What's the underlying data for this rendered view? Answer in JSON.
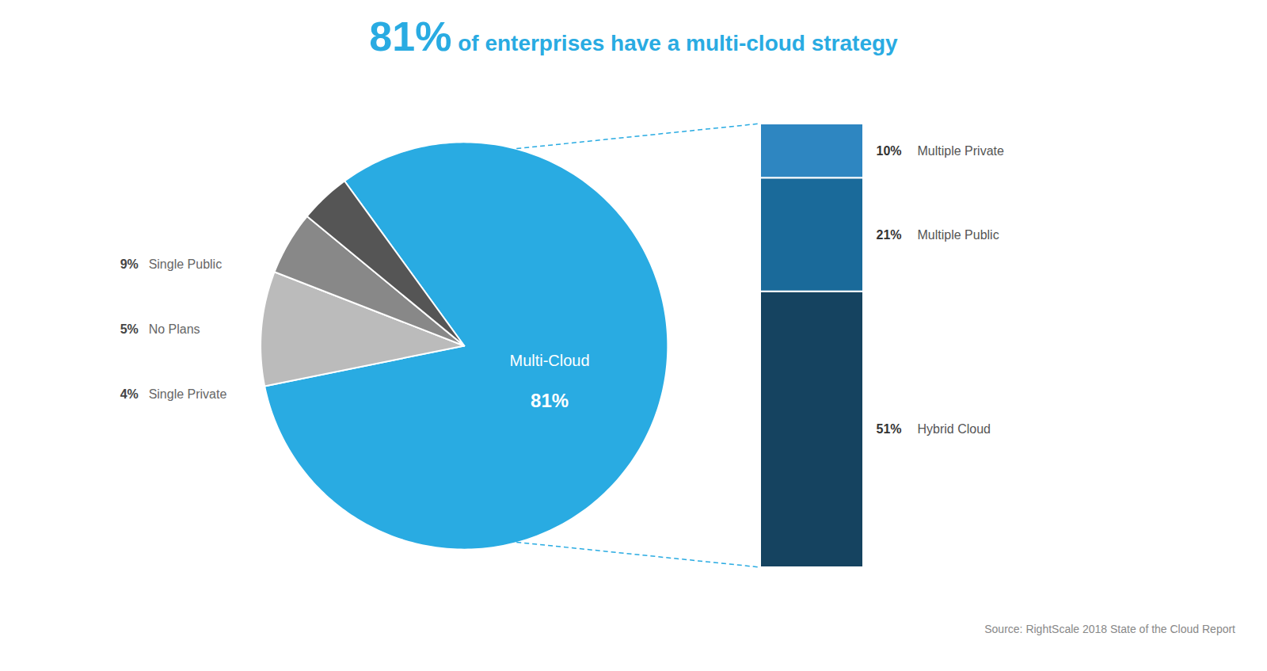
{
  "chart_data": [
    {
      "type": "pie",
      "title": "81% of enterprises have a multi-cloud strategy",
      "categories": [
        "Multi-Cloud",
        "Single Public",
        "No Plans",
        "Single Private"
      ],
      "values": [
        81,
        9,
        5,
        4
      ],
      "value_labels": [
        "81%",
        "9%",
        "5%",
        "4%"
      ],
      "colors": [
        "#29ABE2",
        "#BBBBBB",
        "#888888",
        "#555555"
      ],
      "data_labels": true,
      "annotations": [
        "Source: RightScale 2018 State of the Cloud Report"
      ]
    },
    {
      "type": "bar",
      "stacked": true,
      "categories": [
        null
      ],
      "series": [
        {
          "name": "Multiple Private",
          "color": "#2E86C1",
          "values": [
            10
          ],
          "value_labels": [
            "10%"
          ]
        },
        {
          "name": "Multiple Public",
          "color": "#1A6A9A",
          "values": [
            21
          ],
          "value_labels": [
            "21%"
          ]
        },
        {
          "name": "Hybrid Cloud",
          "color": "#154360",
          "values": [
            51
          ],
          "value_labels": [
            "51%"
          ]
        }
      ],
      "ylim": [
        0,
        82
      ],
      "tick_labels": false,
      "data_labels": true
    }
  ]
}
